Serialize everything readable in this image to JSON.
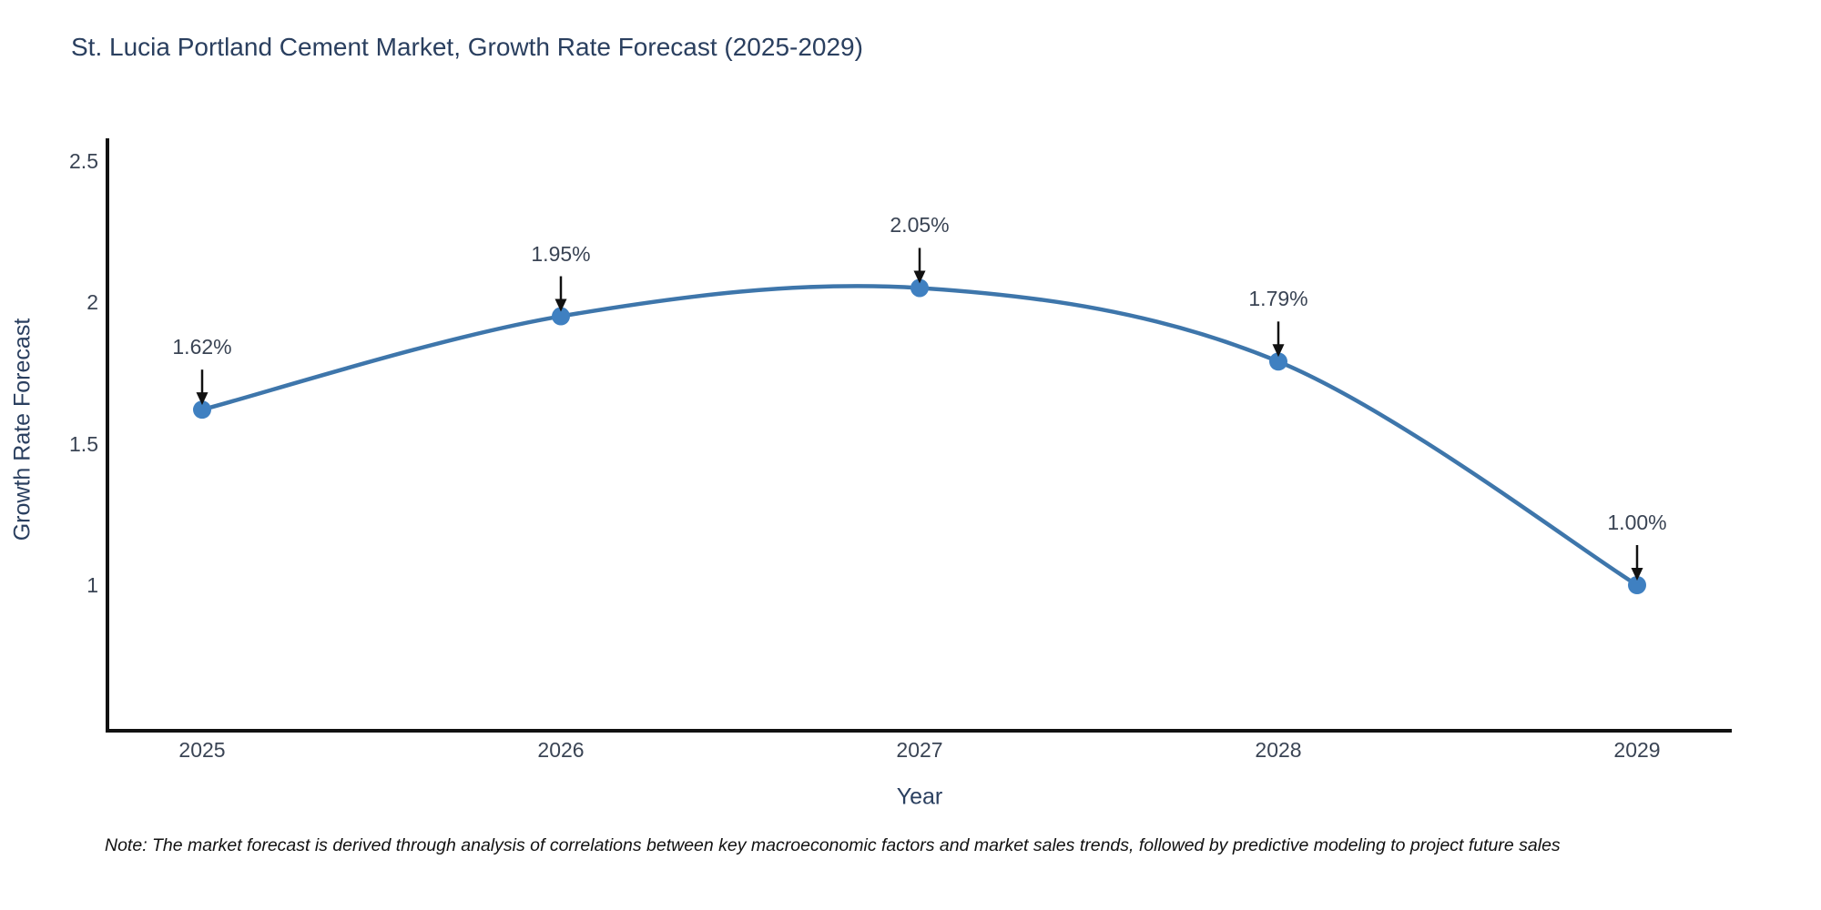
{
  "chart_data": {
    "type": "line",
    "title": "St. Lucia Portland Cement Market, Growth Rate Forecast (2025-2029)",
    "xlabel": "Year",
    "ylabel": "Growth Rate Forecast",
    "x": [
      2025,
      2026,
      2027,
      2028,
      2029
    ],
    "series": [
      {
        "name": "Growth Rate Forecast",
        "values": [
          1.62,
          1.95,
          2.05,
          1.79,
          1.0
        ],
        "point_labels": [
          "1.62%",
          "1.95%",
          "2.05%",
          "1.79%",
          "1.00%"
        ]
      }
    ],
    "y_ticks": [
      "2.5",
      "2",
      "1.5",
      "1"
    ],
    "ylim": [
      0.49,
      2.57
    ],
    "line_shape": "spline",
    "grid": false,
    "legend": "none",
    "colors": {
      "line": "#3e76ab",
      "marker": "#3f80c1",
      "axis": "#111111",
      "title_text": "#2a3f5f",
      "tick_text": "#3a4454",
      "annotation_text": "#3a4454",
      "arrow": "#111111"
    },
    "note": "Note: The market forecast is derived through analysis of correlations between key macroeconomic factors and market sales trends, followed by predictive modeling to project future sales"
  }
}
